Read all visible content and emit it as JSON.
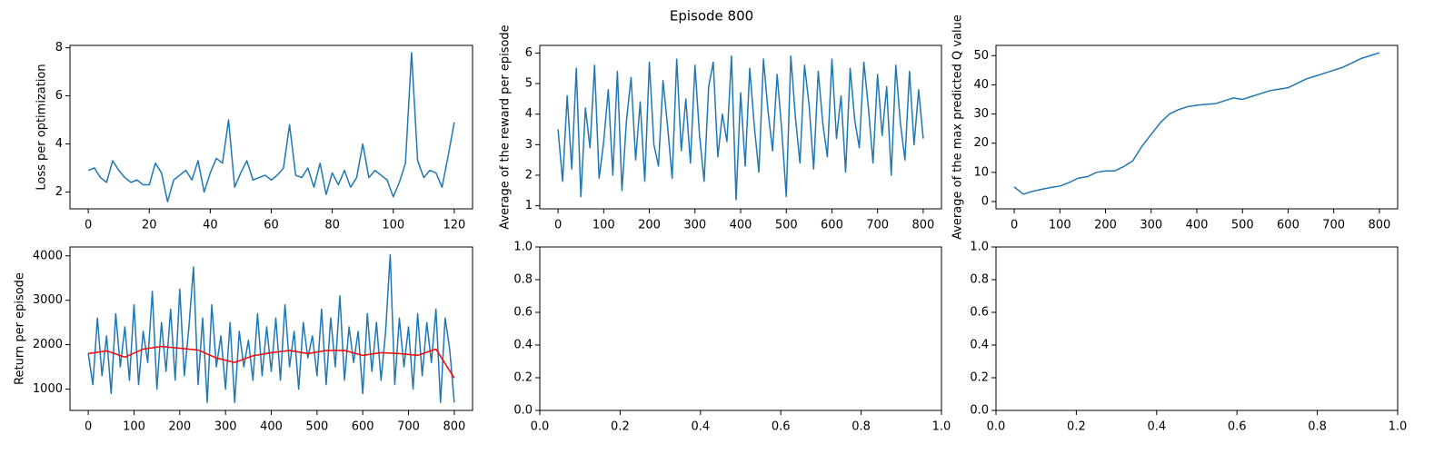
{
  "title": "Episode 800",
  "chart_data": [
    {
      "type": "line",
      "ylabel": "Loss per optimization",
      "xlim": [
        -6,
        126
      ],
      "ylim": [
        1.3,
        8.1
      ],
      "xticks": [
        0,
        20,
        40,
        60,
        80,
        100,
        120
      ],
      "yticks": [
        2,
        4,
        6,
        8
      ],
      "series": [
        {
          "color": "#1f77b4",
          "x": [
            0,
            2,
            4,
            6,
            8,
            10,
            12,
            14,
            16,
            18,
            20,
            22,
            24,
            26,
            28,
            30,
            32,
            34,
            36,
            38,
            40,
            42,
            44,
            46,
            48,
            50,
            52,
            54,
            56,
            58,
            60,
            62,
            64,
            66,
            68,
            70,
            72,
            74,
            76,
            78,
            80,
            82,
            84,
            86,
            88,
            90,
            92,
            94,
            96,
            98,
            100,
            102,
            104,
            106,
            108,
            110,
            112,
            114,
            116,
            118,
            120
          ],
          "values": [
            2.9,
            3.0,
            2.6,
            2.4,
            3.3,
            2.9,
            2.6,
            2.4,
            2.5,
            2.3,
            2.3,
            3.2,
            2.8,
            1.6,
            2.5,
            2.7,
            2.9,
            2.5,
            3.3,
            2.0,
            2.8,
            3.4,
            3.2,
            5.0,
            2.2,
            2.8,
            3.3,
            2.5,
            2.6,
            2.7,
            2.5,
            2.7,
            3.0,
            4.8,
            2.7,
            2.6,
            3.0,
            2.2,
            3.2,
            1.9,
            2.8,
            2.3,
            2.9,
            2.2,
            2.6,
            4.0,
            2.6,
            2.9,
            2.7,
            2.5,
            1.8,
            2.4,
            3.2,
            7.8,
            3.3,
            2.6,
            2.9,
            2.8,
            2.2,
            3.5,
            4.9
          ]
        }
      ]
    },
    {
      "type": "line",
      "ylabel": "Average of the reward per episode",
      "xlim": [
        -40,
        840
      ],
      "ylim": [
        0.9,
        6.25
      ],
      "xticks": [
        0,
        100,
        200,
        300,
        400,
        500,
        600,
        700,
        800
      ],
      "yticks": [
        1,
        2,
        3,
        4,
        5,
        6
      ],
      "series": [
        {
          "color": "#1f77b4",
          "x": [
            0,
            10,
            20,
            30,
            40,
            50,
            60,
            70,
            80,
            90,
            100,
            110,
            120,
            130,
            140,
            150,
            160,
            170,
            180,
            190,
            200,
            210,
            220,
            230,
            240,
            250,
            260,
            270,
            280,
            290,
            300,
            310,
            320,
            330,
            340,
            350,
            360,
            370,
            380,
            390,
            400,
            410,
            420,
            430,
            440,
            450,
            460,
            470,
            480,
            490,
            500,
            510,
            520,
            530,
            540,
            550,
            560,
            570,
            580,
            590,
            600,
            610,
            620,
            630,
            640,
            650,
            660,
            670,
            680,
            690,
            700,
            710,
            720,
            730,
            740,
            750,
            760,
            770,
            780,
            790,
            800
          ],
          "values": [
            3.5,
            1.8,
            4.6,
            2.2,
            5.5,
            1.3,
            4.2,
            2.9,
            5.6,
            1.9,
            3.1,
            4.8,
            2.0,
            5.4,
            1.5,
            3.8,
            5.2,
            2.5,
            4.4,
            1.8,
            5.7,
            3.0,
            2.3,
            5.1,
            3.6,
            1.9,
            5.8,
            2.8,
            4.5,
            2.4,
            5.6,
            3.3,
            1.8,
            4.9,
            5.7,
            2.6,
            4.0,
            3.1,
            5.9,
            1.2,
            4.7,
            2.3,
            5.5,
            3.6,
            2.1,
            5.8,
            4.1,
            2.8,
            5.3,
            3.5,
            1.3,
            5.9,
            3.9,
            2.4,
            5.6,
            4.3,
            2.2,
            5.4,
            3.7,
            2.6,
            5.8,
            3.2,
            4.6,
            2.1,
            5.5,
            3.8,
            2.9,
            5.7,
            4.2,
            2.4,
            5.3,
            3.3,
            4.9,
            2.0,
            5.6,
            3.7,
            2.5,
            5.4,
            3.0,
            4.8,
            3.2
          ]
        }
      ]
    },
    {
      "type": "line",
      "ylabel": "Average of the max predicted Q value",
      "xlim": [
        -40,
        840
      ],
      "ylim": [
        -2.5,
        53.5
      ],
      "xticks": [
        0,
        100,
        200,
        300,
        400,
        500,
        600,
        700,
        800
      ],
      "yticks": [
        0,
        10,
        20,
        30,
        40,
        50
      ],
      "series": [
        {
          "color": "#1f77b4",
          "x": [
            0,
            20,
            40,
            60,
            80,
            100,
            120,
            140,
            160,
            180,
            200,
            220,
            240,
            260,
            280,
            300,
            320,
            340,
            360,
            380,
            400,
            420,
            440,
            460,
            480,
            500,
            520,
            540,
            560,
            580,
            600,
            620,
            640,
            660,
            680,
            700,
            720,
            740,
            760,
            780,
            800
          ],
          "values": [
            5,
            2.5,
            3.5,
            4.2,
            4.8,
            5.3,
            6.5,
            8,
            8.5,
            10,
            10.5,
            10.5,
            12,
            14,
            19,
            23,
            27,
            30,
            31.5,
            32.5,
            33,
            33.3,
            33.5,
            34.5,
            35.5,
            35,
            36,
            37,
            38,
            38.5,
            39,
            40.5,
            42,
            43,
            44,
            45,
            46,
            47.5,
            49,
            50,
            51
          ]
        }
      ]
    },
    {
      "type": "line",
      "ylabel": "Return per episode",
      "xlim": [
        -40,
        840
      ],
      "ylim": [
        520,
        4200
      ],
      "xticks": [
        0,
        100,
        200,
        300,
        400,
        500,
        600,
        700,
        800
      ],
      "yticks": [
        1000,
        2000,
        3000,
        4000
      ],
      "series": [
        {
          "color": "#1f77b4",
          "x": [
            0,
            10,
            20,
            30,
            40,
            50,
            60,
            70,
            80,
            90,
            100,
            110,
            120,
            130,
            140,
            150,
            160,
            170,
            180,
            190,
            200,
            210,
            220,
            230,
            240,
            250,
            260,
            270,
            280,
            290,
            300,
            310,
            320,
            330,
            340,
            350,
            360,
            370,
            380,
            390,
            400,
            410,
            420,
            430,
            440,
            450,
            460,
            470,
            480,
            490,
            500,
            510,
            520,
            530,
            540,
            550,
            560,
            570,
            580,
            590,
            600,
            610,
            620,
            630,
            640,
            650,
            660,
            670,
            680,
            690,
            700,
            710,
            720,
            730,
            740,
            750,
            760,
            770,
            780,
            790,
            800
          ],
          "values": [
            1800,
            1100,
            2600,
            1300,
            2200,
            900,
            2700,
            1500,
            2400,
            1200,
            2900,
            1100,
            2300,
            1600,
            3200,
            1000,
            2500,
            1400,
            2800,
            1200,
            3250,
            1300,
            2400,
            3750,
            1100,
            2600,
            700,
            2900,
            1500,
            2200,
            1000,
            2500,
            700,
            2300,
            1500,
            2100,
            1200,
            2700,
            1300,
            2400,
            1400,
            2600,
            1200,
            2900,
            1500,
            2300,
            1000,
            2500,
            1700,
            2200,
            1300,
            2800,
            1100,
            2600,
            1500,
            3100,
            1200,
            2400,
            1600,
            2300,
            900,
            2700,
            1400,
            2500,
            1200,
            2300,
            4030,
            1100,
            2600,
            1500,
            2400,
            1000,
            2700,
            1300,
            2500,
            1600,
            2800,
            700,
            2600,
            1900,
            700
          ]
        },
        {
          "color": "red",
          "x": [
            0,
            40,
            80,
            120,
            160,
            200,
            240,
            280,
            320,
            360,
            400,
            440,
            480,
            520,
            560,
            600,
            640,
            680,
            720,
            760,
            800
          ],
          "values": [
            1800,
            1860,
            1720,
            1900,
            1960,
            1920,
            1880,
            1700,
            1600,
            1750,
            1820,
            1870,
            1800,
            1870,
            1870,
            1760,
            1820,
            1800,
            1760,
            1900,
            1250
          ]
        }
      ]
    },
    {
      "type": "line",
      "xlim": [
        0,
        1
      ],
      "ylim": [
        0,
        1
      ],
      "xticks": [
        {
          "value": 0,
          "label": "0.0"
        },
        {
          "value": 0.2,
          "label": "0.2"
        },
        {
          "value": 0.4,
          "label": "0.4"
        },
        {
          "value": 0.6,
          "label": "0.6"
        },
        {
          "value": 0.8,
          "label": "0.8"
        },
        {
          "value": 1,
          "label": "1.0"
        }
      ],
      "yticks": [
        {
          "value": 0,
          "label": "0.0"
        },
        {
          "value": 0.2,
          "label": "0.2"
        },
        {
          "value": 0.4,
          "label": "0.4"
        },
        {
          "value": 0.6,
          "label": "0.6"
        },
        {
          "value": 0.8,
          "label": "0.8"
        },
        {
          "value": 1,
          "label": "1.0"
        }
      ],
      "series": []
    },
    {
      "type": "line",
      "xlim": [
        0,
        1
      ],
      "ylim": [
        0,
        1
      ],
      "xticks": [
        {
          "value": 0,
          "label": "0.0"
        },
        {
          "value": 0.2,
          "label": "0.2"
        },
        {
          "value": 0.4,
          "label": "0.4"
        },
        {
          "value": 0.6,
          "label": "0.6"
        },
        {
          "value": 0.8,
          "label": "0.8"
        },
        {
          "value": 1,
          "label": "1.0"
        }
      ],
      "yticks": [
        {
          "value": 0,
          "label": "0.0"
        },
        {
          "value": 0.2,
          "label": "0.2"
        },
        {
          "value": 0.4,
          "label": "0.4"
        },
        {
          "value": 0.6,
          "label": "0.6"
        },
        {
          "value": 0.8,
          "label": "0.8"
        },
        {
          "value": 1,
          "label": "1.0"
        }
      ],
      "series": []
    }
  ]
}
